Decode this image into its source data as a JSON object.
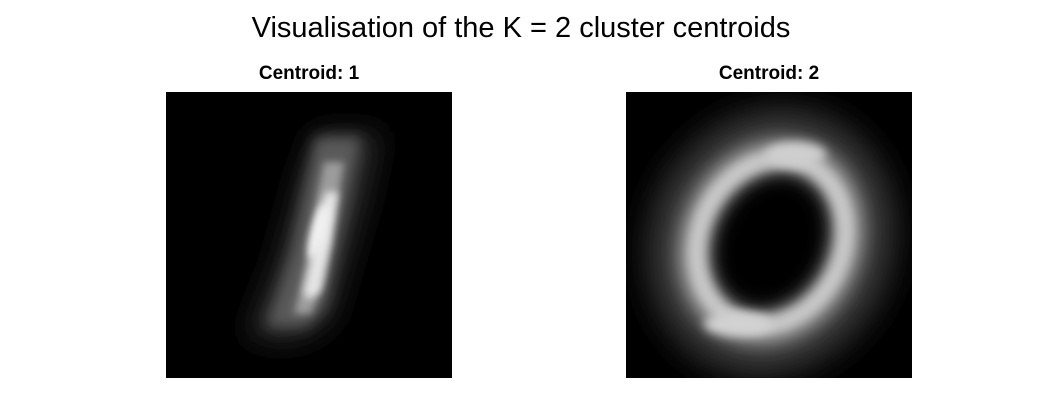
{
  "figure": {
    "title": "Visualisation of the K = 2 cluster centroids"
  },
  "panels": [
    {
      "title": "Centroid: 1",
      "depicts": "digit-one-centroid"
    },
    {
      "title": "Centroid: 2",
      "depicts": "digit-zero-centroid"
    }
  ],
  "colors": {
    "background": "#ffffff",
    "image_background": "#000000",
    "stroke_peak": "#f2f2f2"
  }
}
